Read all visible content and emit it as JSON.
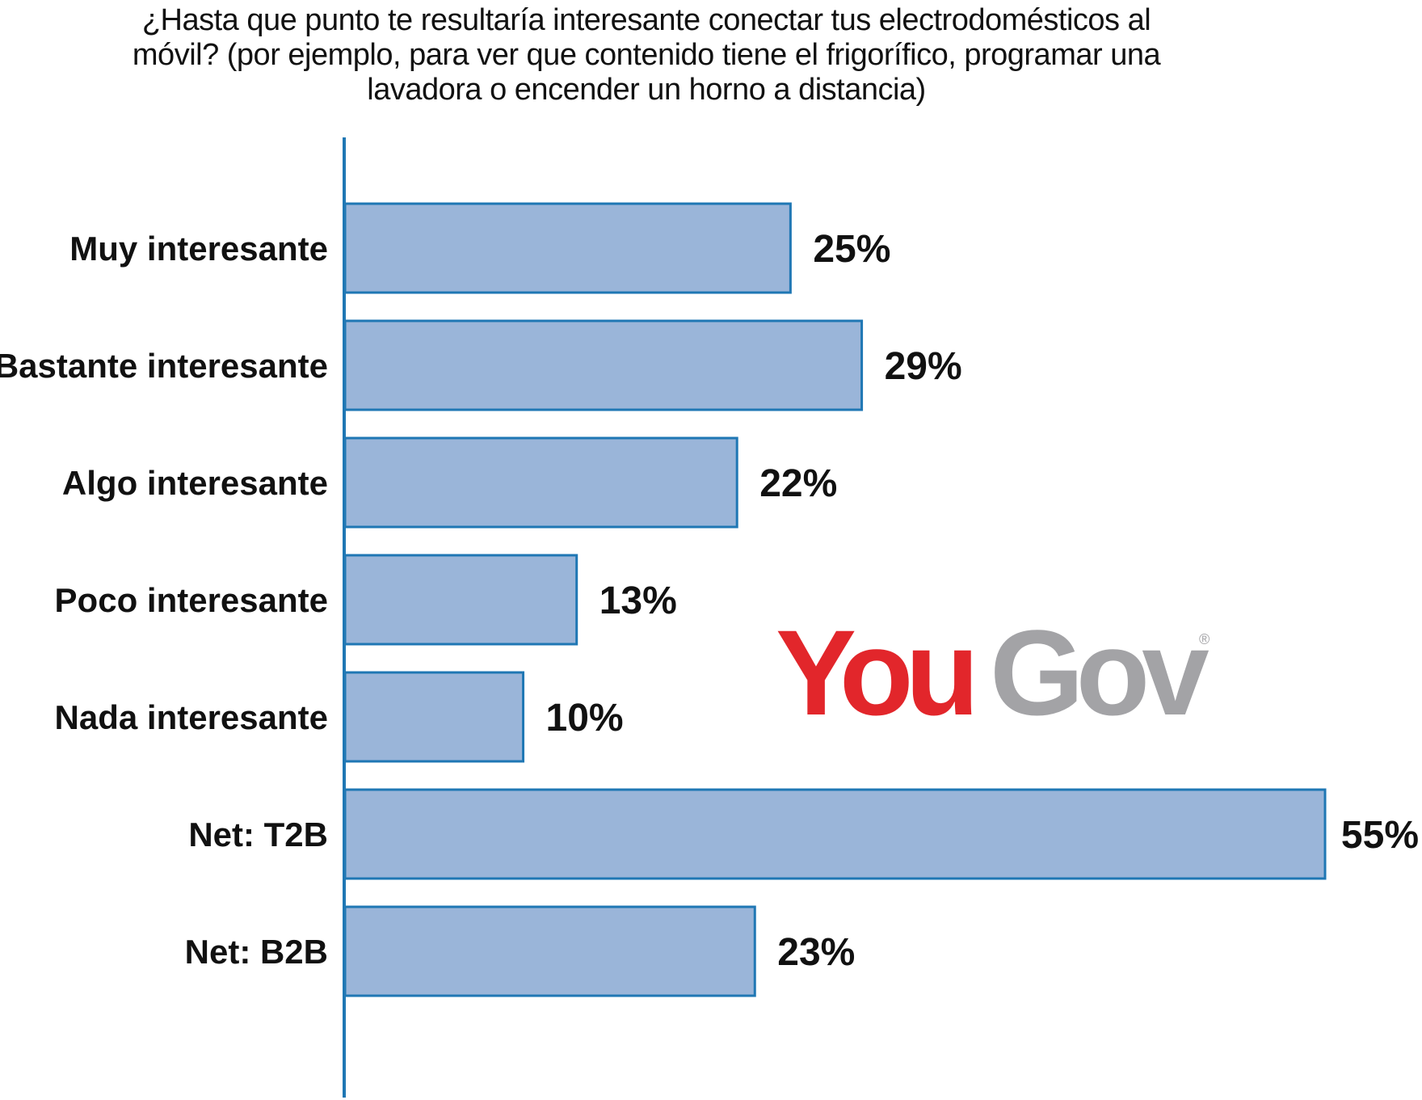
{
  "chart_data": {
    "type": "bar",
    "orientation": "horizontal",
    "title": "¿Hasta que punto te resultaría interesante conectar tus electrodomésticos al móvil? (por ejemplo, para ver que contenido tiene el frigorífico, programar una lavadora o encender un horno a distancia)",
    "categories": [
      "Muy interesante",
      "Bastante interesante",
      "Algo interesante",
      "Poco interesante",
      "Nada interesante",
      "Net: T2B",
      "Net: B2B"
    ],
    "values": [
      25,
      29,
      22,
      13,
      10,
      55,
      23
    ],
    "value_labels": [
      "25%",
      "29%",
      "22%",
      "13%",
      "10%",
      "55%",
      "23%"
    ],
    "unit": "%",
    "xlim": [
      0,
      55
    ],
    "grid": false,
    "bar_fill": "#9ab5d9",
    "bar_stroke": "#1f77b4",
    "axis_color": "#1f77b4"
  },
  "logo": {
    "text_you": "You",
    "text_gov": "Gov",
    "registered": "®",
    "color_you": "#e2262b",
    "color_gov": "#a3a3a6"
  }
}
